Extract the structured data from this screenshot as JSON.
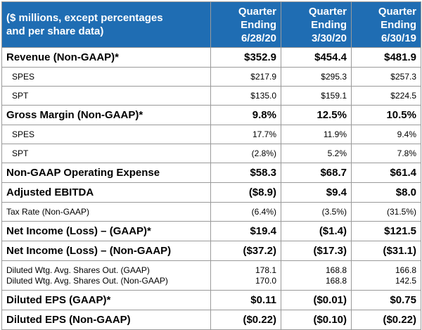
{
  "header": {
    "label_line1": "($ millions, except percentages",
    "label_line2": "and per share data)",
    "periods": [
      {
        "line1": "Quarter",
        "line2": "Ending",
        "line3": "6/28/20"
      },
      {
        "line1": "Quarter",
        "line2": "Ending",
        "line3": "3/30/20"
      },
      {
        "line1": "Quarter",
        "line2": "Ending",
        "line3": "6/30/19"
      }
    ]
  },
  "rows": {
    "revenue": {
      "label": "Revenue (Non-GAAP)*",
      "values": [
        "$352.9",
        "$454.4",
        "$481.9"
      ]
    },
    "revenue_spes": {
      "label": "SPES",
      "values": [
        "$217.9",
        "$295.3",
        "$257.3"
      ]
    },
    "revenue_spt": {
      "label": "SPT",
      "values": [
        "$135.0",
        "$159.1",
        "$224.5"
      ]
    },
    "gross_margin": {
      "label": "Gross Margin (Non-GAAP)*",
      "values": [
        "9.8%",
        "12.5%",
        "10.5%"
      ]
    },
    "gm_spes": {
      "label": "SPES",
      "values": [
        "17.7%",
        "11.9%",
        "9.4%"
      ]
    },
    "gm_spt": {
      "label": "SPT",
      "values": [
        "(2.8%)",
        "5.2%",
        "7.8%"
      ]
    },
    "opex": {
      "label": "Non-GAAP Operating Expense",
      "values": [
        "$58.3",
        "$68.7",
        "$61.4"
      ]
    },
    "ebitda": {
      "label": "Adjusted EBITDA",
      "values": [
        "($8.9)",
        "$9.4",
        "$8.0"
      ]
    },
    "tax_rate": {
      "label": "Tax Rate (Non-GAAP)",
      "values": [
        "(6.4%)",
        "(3.5%)",
        "(31.5%)"
      ]
    },
    "net_income_gaap": {
      "label": "Net Income (Loss) – (GAAP)*",
      "values": [
        "$19.4",
        "($1.4)",
        "$121.5"
      ]
    },
    "net_income_nongaap": {
      "label": "Net Income (Loss) – (Non-GAAP)",
      "values": [
        "($37.2)",
        "($17.3)",
        "($31.1)"
      ]
    },
    "shares": {
      "label_gaap": "Diluted Wtg. Avg. Shares Out. (GAAP)",
      "label_nongaap": "Diluted Wtg. Avg. Shares Out. (Non-GAAP)",
      "values_gaap": [
        "178.1",
        "168.8",
        "166.8"
      ],
      "values_nongaap": [
        "170.0",
        "168.8",
        "142.5"
      ]
    },
    "eps_gaap": {
      "label": "Diluted EPS (GAAP)*",
      "values": [
        "$0.11",
        "($0.01)",
        "$0.75"
      ]
    },
    "eps_nongaap": {
      "label": "Diluted EPS (Non-GAAP)",
      "values": [
        "($0.22)",
        "($0.10)",
        "($0.22)"
      ]
    }
  }
}
